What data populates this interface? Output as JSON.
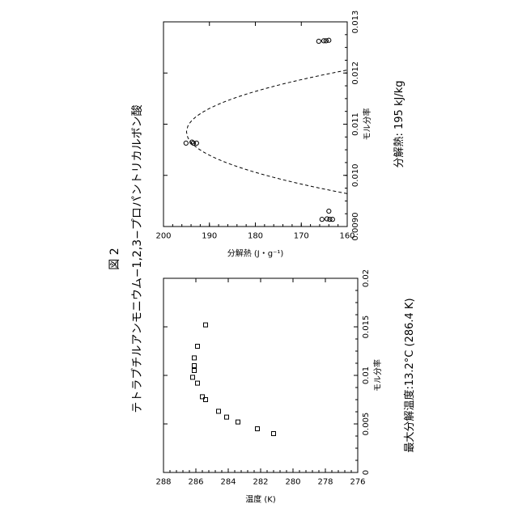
{
  "figure_label": "図 2",
  "title": "テトラブチルアンモニウム−1,2,3−プロパントリカルボン酸",
  "chart_data": [
    {
      "type": "scatter",
      "id": "left",
      "xlabel": "モル分率",
      "ylabel": "温度 (K)",
      "xlim": [
        0,
        0.02
      ],
      "ylim": [
        276,
        288
      ],
      "xticks": [
        "0",
        "0.005",
        "0.01",
        "0.015",
        "0.02"
      ],
      "yticks": [
        "288",
        "286",
        "284",
        "282",
        "280",
        "278",
        "276"
      ],
      "marker": "square",
      "points": [
        {
          "x": 0.004,
          "y": 281.2
        },
        {
          "x": 0.0045,
          "y": 282.2
        },
        {
          "x": 0.0052,
          "y": 283.4
        },
        {
          "x": 0.0057,
          "y": 284.1
        },
        {
          "x": 0.0063,
          "y": 284.6
        },
        {
          "x": 0.0075,
          "y": 285.4
        },
        {
          "x": 0.0078,
          "y": 285.6
        },
        {
          "x": 0.0092,
          "y": 285.9
        },
        {
          "x": 0.0098,
          "y": 286.2
        },
        {
          "x": 0.0105,
          "y": 286.1
        },
        {
          "x": 0.011,
          "y": 286.1
        },
        {
          "x": 0.0118,
          "y": 286.1
        },
        {
          "x": 0.013,
          "y": 285.9
        },
        {
          "x": 0.0152,
          "y": 285.4
        }
      ],
      "footnote": "最大分解温度:13.2°C (286.4 K)"
    },
    {
      "type": "scatter",
      "id": "right",
      "xlabel": "モル分率",
      "ylabel": "分解熱 (J・g⁻¹)",
      "xlim": [
        0.009,
        0.013
      ],
      "ylim": [
        160,
        200
      ],
      "xticks": [
        "0.0090",
        "0.010",
        "0.011",
        "0.012",
        "0.013"
      ],
      "yticks": [
        "200",
        "190",
        "180",
        "170",
        "160"
      ],
      "marker": "circle",
      "points": [
        {
          "x": 0.00914,
          "y": 165.5
        },
        {
          "x": 0.00914,
          "y": 163.2
        },
        {
          "x": 0.00914,
          "y": 163.8
        },
        {
          "x": 0.00915,
          "y": 164.4
        },
        {
          "x": 0.0093,
          "y": 164.0
        },
        {
          "x": 0.01063,
          "y": 192.8
        },
        {
          "x": 0.01063,
          "y": 193.5
        },
        {
          "x": 0.01065,
          "y": 193.8
        },
        {
          "x": 0.01063,
          "y": 195.1
        },
        {
          "x": 0.01262,
          "y": 166.2
        },
        {
          "x": 0.01263,
          "y": 165.1
        },
        {
          "x": 0.01263,
          "y": 164.6
        },
        {
          "x": 0.01264,
          "y": 164.0
        }
      ],
      "fit_curve": {
        "style": "dashed",
        "peak_x": 0.01085,
        "peak_y": 195.0,
        "coef": -24000000.0
      },
      "footnote": "分解熱: 195 kJ/kg"
    }
  ]
}
